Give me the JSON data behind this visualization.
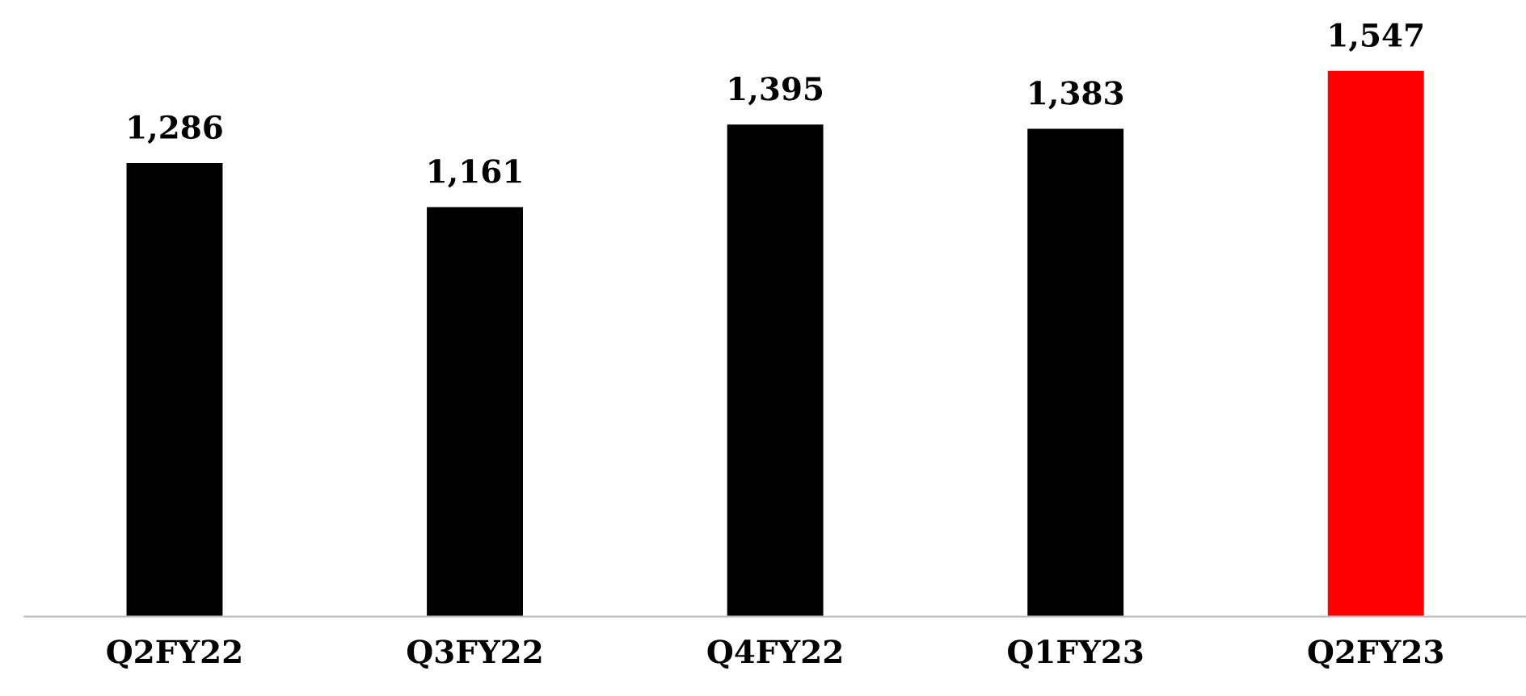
{
  "chart_data": {
    "type": "bar",
    "categories": [
      "Q2FY22",
      "Q3FY22",
      "Q4FY22",
      "Q1FY23",
      "Q2FY23"
    ],
    "values": [
      1286,
      1161,
      1395,
      1383,
      1547
    ],
    "colors": [
      "#000000",
      "#000000",
      "#000000",
      "#000000",
      "#ff0000"
    ],
    "value_labels": [
      "1,286",
      "1,161",
      "1,395",
      "1,383",
      "1,547"
    ],
    "grid": false,
    "legend": false
  }
}
